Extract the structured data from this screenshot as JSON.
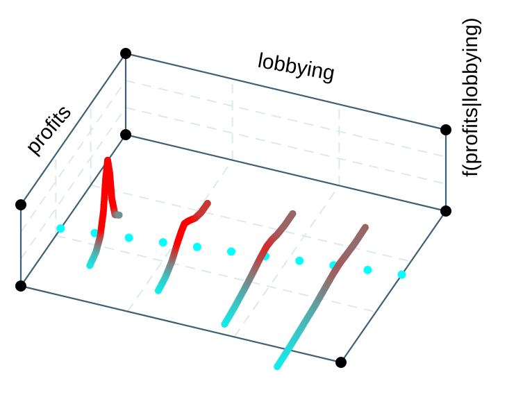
{
  "chart_data": {
    "type": "3d-line",
    "title": "",
    "axes": {
      "x_label": "lobbying",
      "y_label": "profits",
      "z_label": "f(profits|lobbying)"
    },
    "grid": true,
    "x_range": [
      0,
      1
    ],
    "y_range": [
      0,
      1
    ],
    "z_range": [
      0,
      1
    ],
    "colors": {
      "low_density": "#00ffff",
      "high_density": "#ff0000",
      "box_edge": "#3f5f75",
      "grid": "#dfe8ec",
      "corner_marker": "#000000"
    },
    "dotted_regression_line": {
      "color": "#00ffff",
      "points": [
        {
          "x": 0.0,
          "y": 0.38,
          "z": 0.0
        },
        {
          "x": 0.1,
          "y": 0.4,
          "z": 0.0
        },
        {
          "x": 0.2,
          "y": 0.42,
          "z": 0.0
        },
        {
          "x": 0.3,
          "y": 0.44,
          "z": 0.0
        },
        {
          "x": 0.4,
          "y": 0.46,
          "z": 0.0
        },
        {
          "x": 0.5,
          "y": 0.48,
          "z": 0.0
        },
        {
          "x": 0.6,
          "y": 0.5,
          "z": 0.0
        },
        {
          "x": 0.7,
          "y": 0.52,
          "z": 0.0
        },
        {
          "x": 0.8,
          "y": 0.54,
          "z": 0.0
        },
        {
          "x": 0.9,
          "y": 0.56,
          "z": 0.0
        },
        {
          "x": 1.0,
          "y": 0.58,
          "z": 0.0
        }
      ]
    },
    "series": [
      {
        "x": 0.15,
        "points": [
          {
            "y": 0.2,
            "z": 0.02
          },
          {
            "y": 0.26,
            "z": 0.08
          },
          {
            "y": 0.3,
            "z": 0.2
          },
          {
            "y": 0.33,
            "z": 0.45
          },
          {
            "y": 0.35,
            "z": 0.8
          },
          {
            "y": 0.37,
            "z": 1.0
          },
          {
            "y": 0.39,
            "z": 0.8
          },
          {
            "y": 0.41,
            "z": 0.45
          },
          {
            "y": 0.44,
            "z": 0.2
          },
          {
            "y": 0.48,
            "z": 0.12
          }
        ]
      },
      {
        "x": 0.38,
        "points": [
          {
            "y": 0.15,
            "z": 0.02
          },
          {
            "y": 0.22,
            "z": 0.06
          },
          {
            "y": 0.28,
            "z": 0.14
          },
          {
            "y": 0.33,
            "z": 0.26
          },
          {
            "y": 0.37,
            "z": 0.34
          },
          {
            "y": 0.4,
            "z": 0.38
          },
          {
            "y": 0.44,
            "z": 0.34
          },
          {
            "y": 0.5,
            "z": 0.26
          },
          {
            "y": 0.56,
            "z": 0.22
          },
          {
            "y": 0.62,
            "z": 0.22
          }
        ]
      },
      {
        "x": 0.62,
        "points": [
          {
            "y": 0.05,
            "z": 0.02
          },
          {
            "y": 0.14,
            "z": 0.05
          },
          {
            "y": 0.24,
            "z": 0.1
          },
          {
            "y": 0.32,
            "z": 0.15
          },
          {
            "y": 0.39,
            "z": 0.2
          },
          {
            "y": 0.45,
            "z": 0.23
          },
          {
            "y": 0.5,
            "z": 0.22
          },
          {
            "y": 0.55,
            "z": 0.19
          },
          {
            "y": 0.62,
            "z": 0.17
          },
          {
            "y": 0.7,
            "z": 0.17
          }
        ]
      },
      {
        "x": 0.84,
        "points": [
          {
            "y": -0.12,
            "z": 0.02
          },
          {
            "y": 0.0,
            "z": 0.04
          },
          {
            "y": 0.12,
            "z": 0.07
          },
          {
            "y": 0.24,
            "z": 0.1
          },
          {
            "y": 0.34,
            "z": 0.14
          },
          {
            "y": 0.42,
            "z": 0.17
          },
          {
            "y": 0.48,
            "z": 0.18
          },
          {
            "y": 0.54,
            "z": 0.17
          },
          {
            "y": 0.62,
            "z": 0.16
          },
          {
            "y": 0.72,
            "z": 0.17
          }
        ]
      }
    ]
  }
}
